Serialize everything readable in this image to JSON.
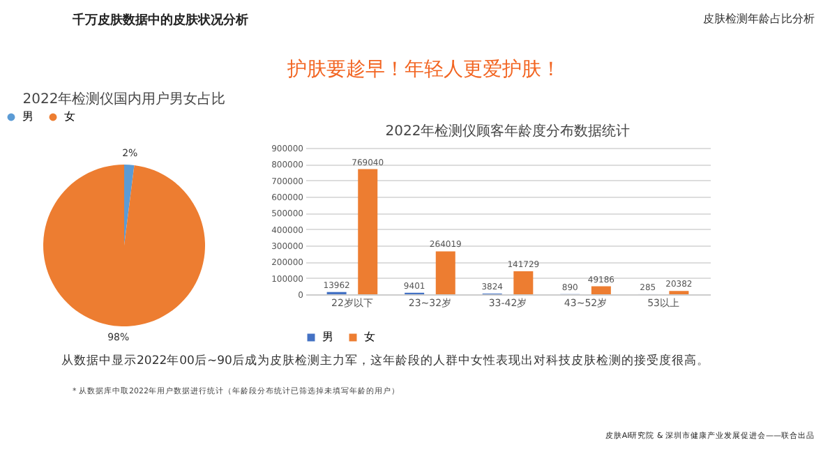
{
  "chart_data": [
    {
      "type": "pie",
      "title": "2022年检测仪国内用户男女占比",
      "categories": [
        "男",
        "女"
      ],
      "values": [
        2,
        98
      ],
      "colors": [
        "#5b9bd5",
        "#ed7d31"
      ],
      "value_labels": [
        "2%",
        "98%"
      ],
      "legend": "top",
      "annotations": [
        "千万皮肤数据中的皮肤状况分析",
        "皮肤检测年龄占比分析",
        "护肤要趁早！年轻人更爱护肤！",
        "从数据中显示2022年00后~90后成为皮肤检测主力军，这年龄段的人群中女性表现出对科技皮肤检测的接受度很高。",
        "* 从数据库中取2022年用户数据进行统计（年龄段分布统计已筛选掉未填写年龄的用户）",
        "皮肤AI研究院 & 深圳市健康产业发展促进会——联合出品"
      ]
    },
    {
      "type": "bar",
      "title": "2022年检测仪顾客年龄度分布数据统计",
      "categories": [
        "22岁以下",
        "23~32岁",
        "33-42岁",
        "43~52岁",
        "53以上"
      ],
      "series": [
        {
          "name": "男",
          "color": "#4472c4",
          "values": [
            13962,
            9401,
            3824,
            890,
            285
          ]
        },
        {
          "name": "女",
          "color": "#ed7d31",
          "values": [
            769040,
            264019,
            141729,
            49186,
            20382
          ]
        }
      ],
      "ylim": [
        0,
        900000
      ],
      "yticks": [
        0,
        100000,
        200000,
        300000,
        400000,
        500000,
        600000,
        700000,
        800000,
        900000
      ],
      "grid": "y",
      "legend": "bottom",
      "data_labels": true
    }
  ]
}
